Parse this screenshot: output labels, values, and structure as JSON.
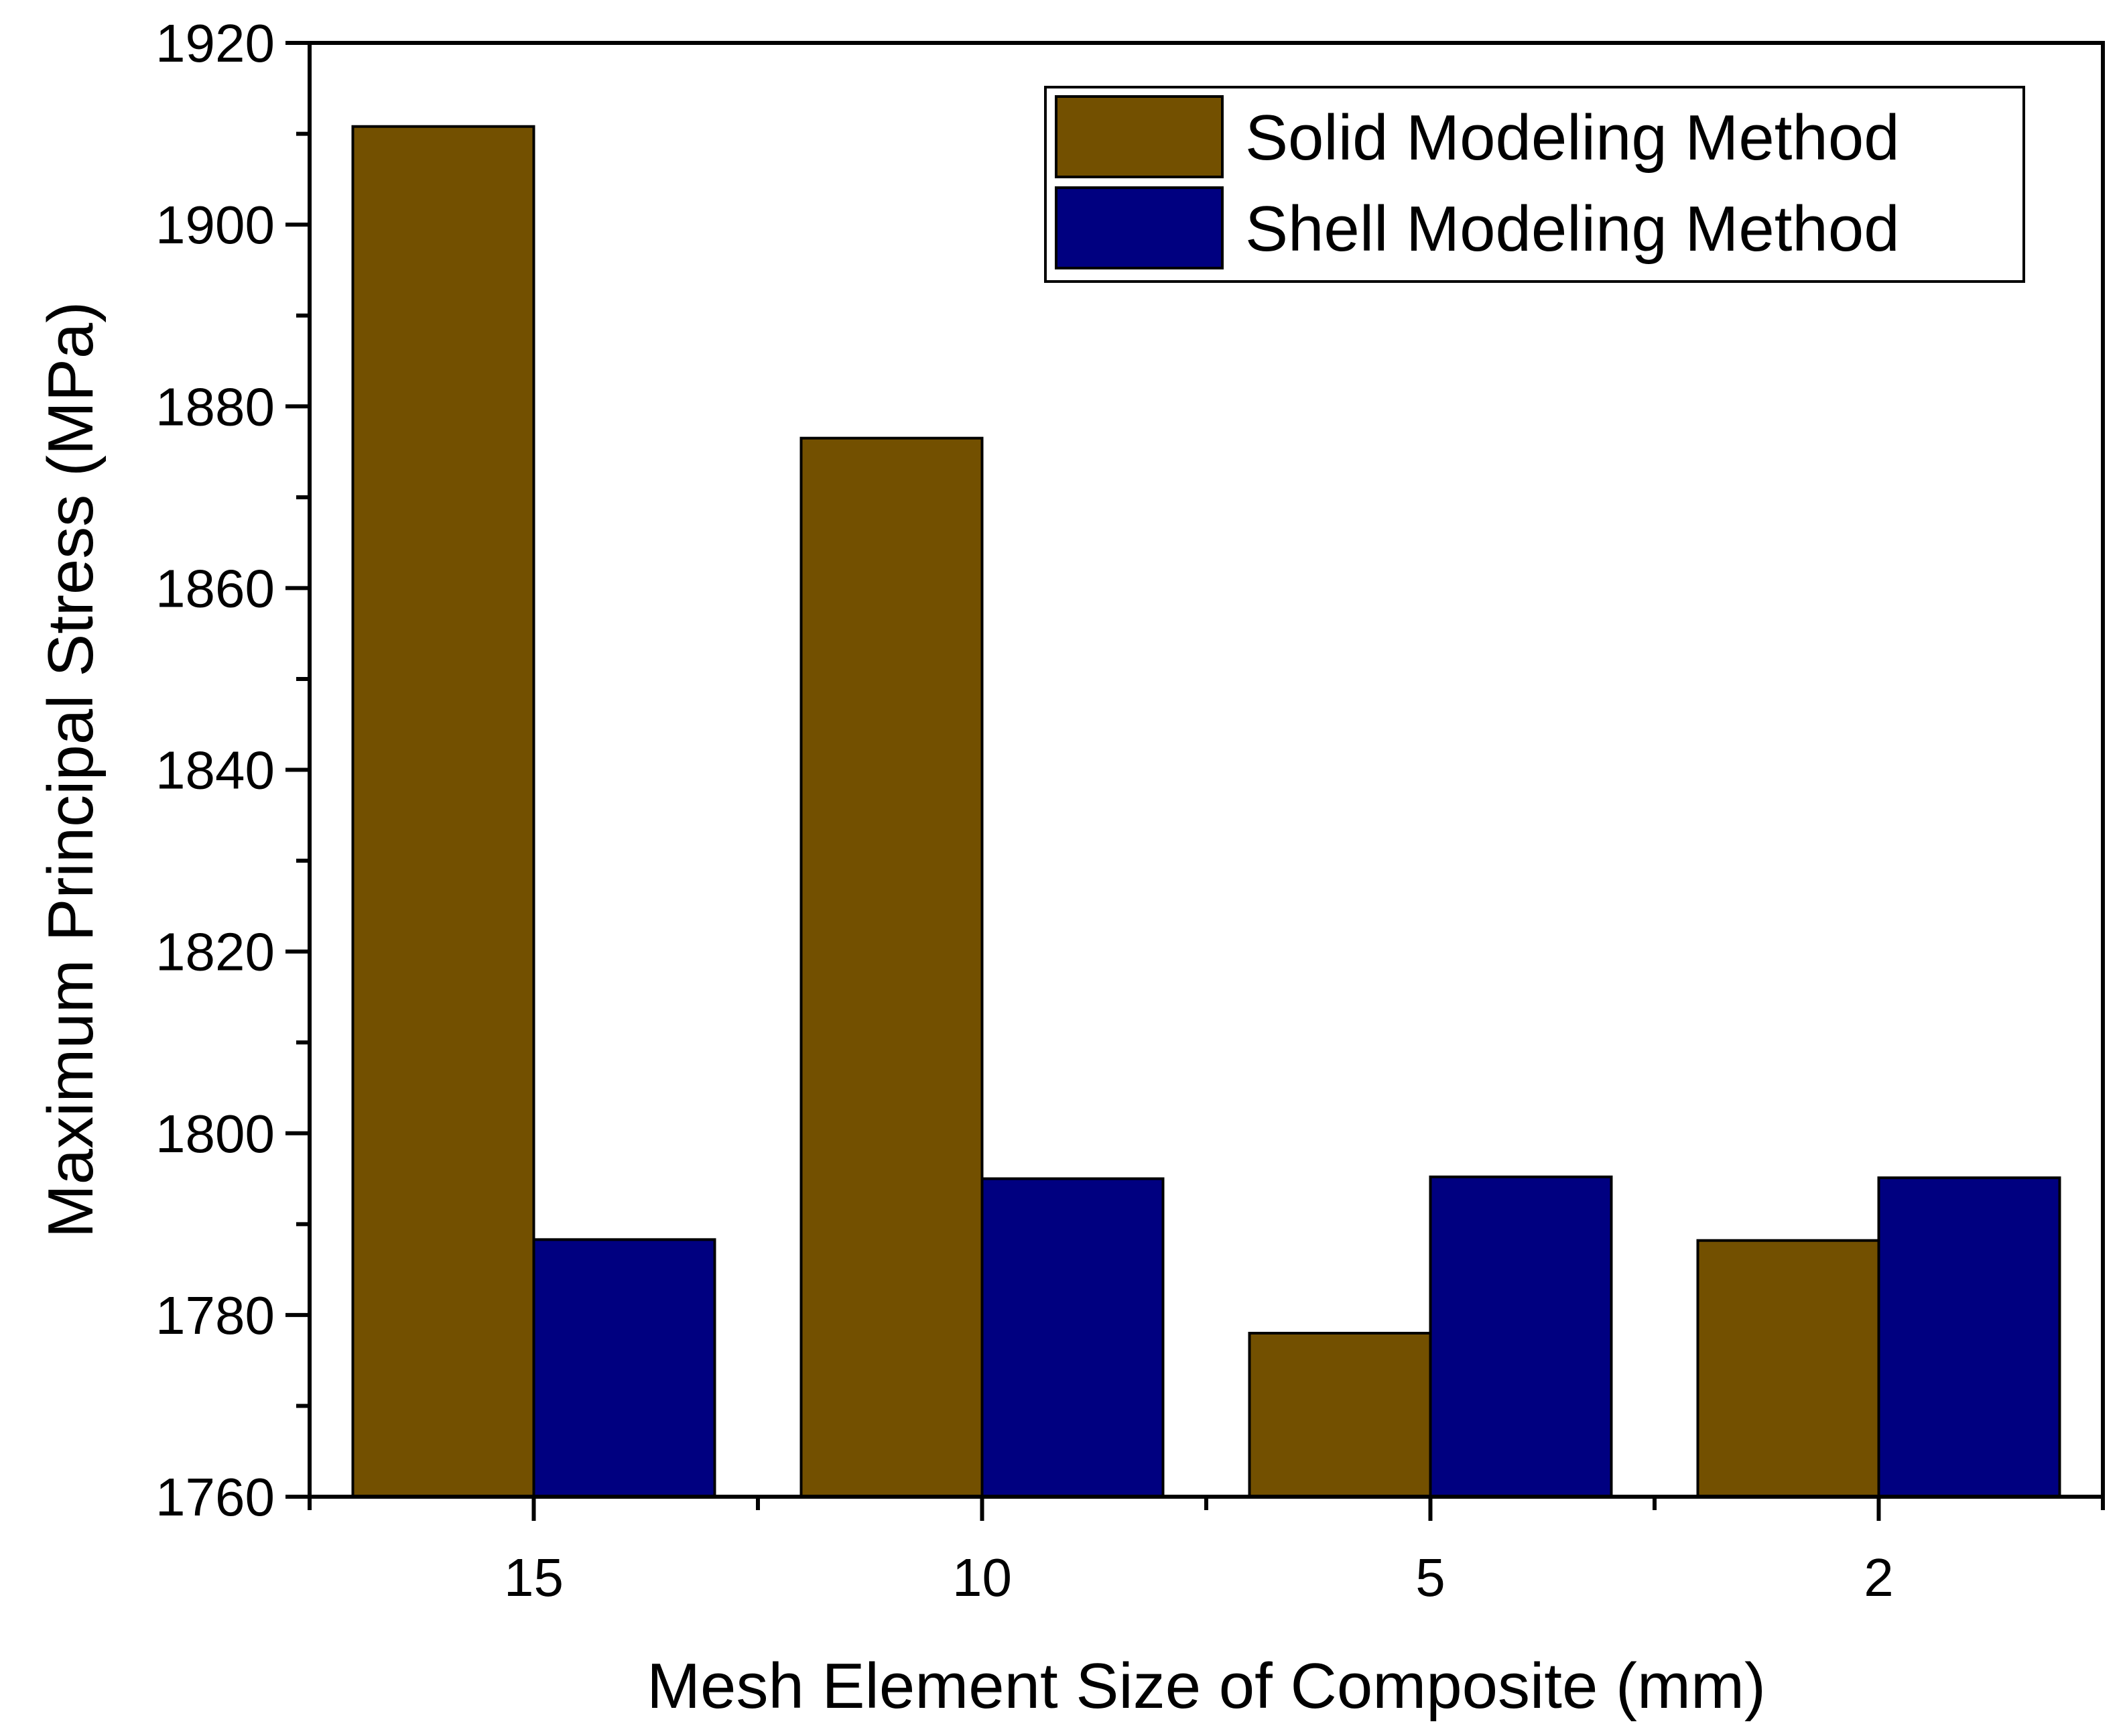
{
  "chart_data": {
    "type": "bar",
    "title": "",
    "xlabel": "Mesh Element Size of Composite (mm)",
    "ylabel": "Maximum Principal Stress (MPa)",
    "categories": [
      "15",
      "10",
      "5",
      "2"
    ],
    "series": [
      {
        "name": "Solid Modeling Method",
        "color": "#735000",
        "values": [
          1910.8,
          1876.5,
          1778.0,
          1788.2
        ]
      },
      {
        "name": "Shell Modeling Method",
        "color": "#000080",
        "values": [
          1788.3,
          1795.0,
          1795.2,
          1795.1
        ]
      }
    ],
    "ylim": [
      1760,
      1920
    ],
    "yticks": [
      "1760",
      "1780",
      "1800",
      "1820",
      "1840",
      "1860",
      "1880",
      "1900",
      "1920"
    ],
    "grid": false,
    "legend_position": "top-right"
  }
}
